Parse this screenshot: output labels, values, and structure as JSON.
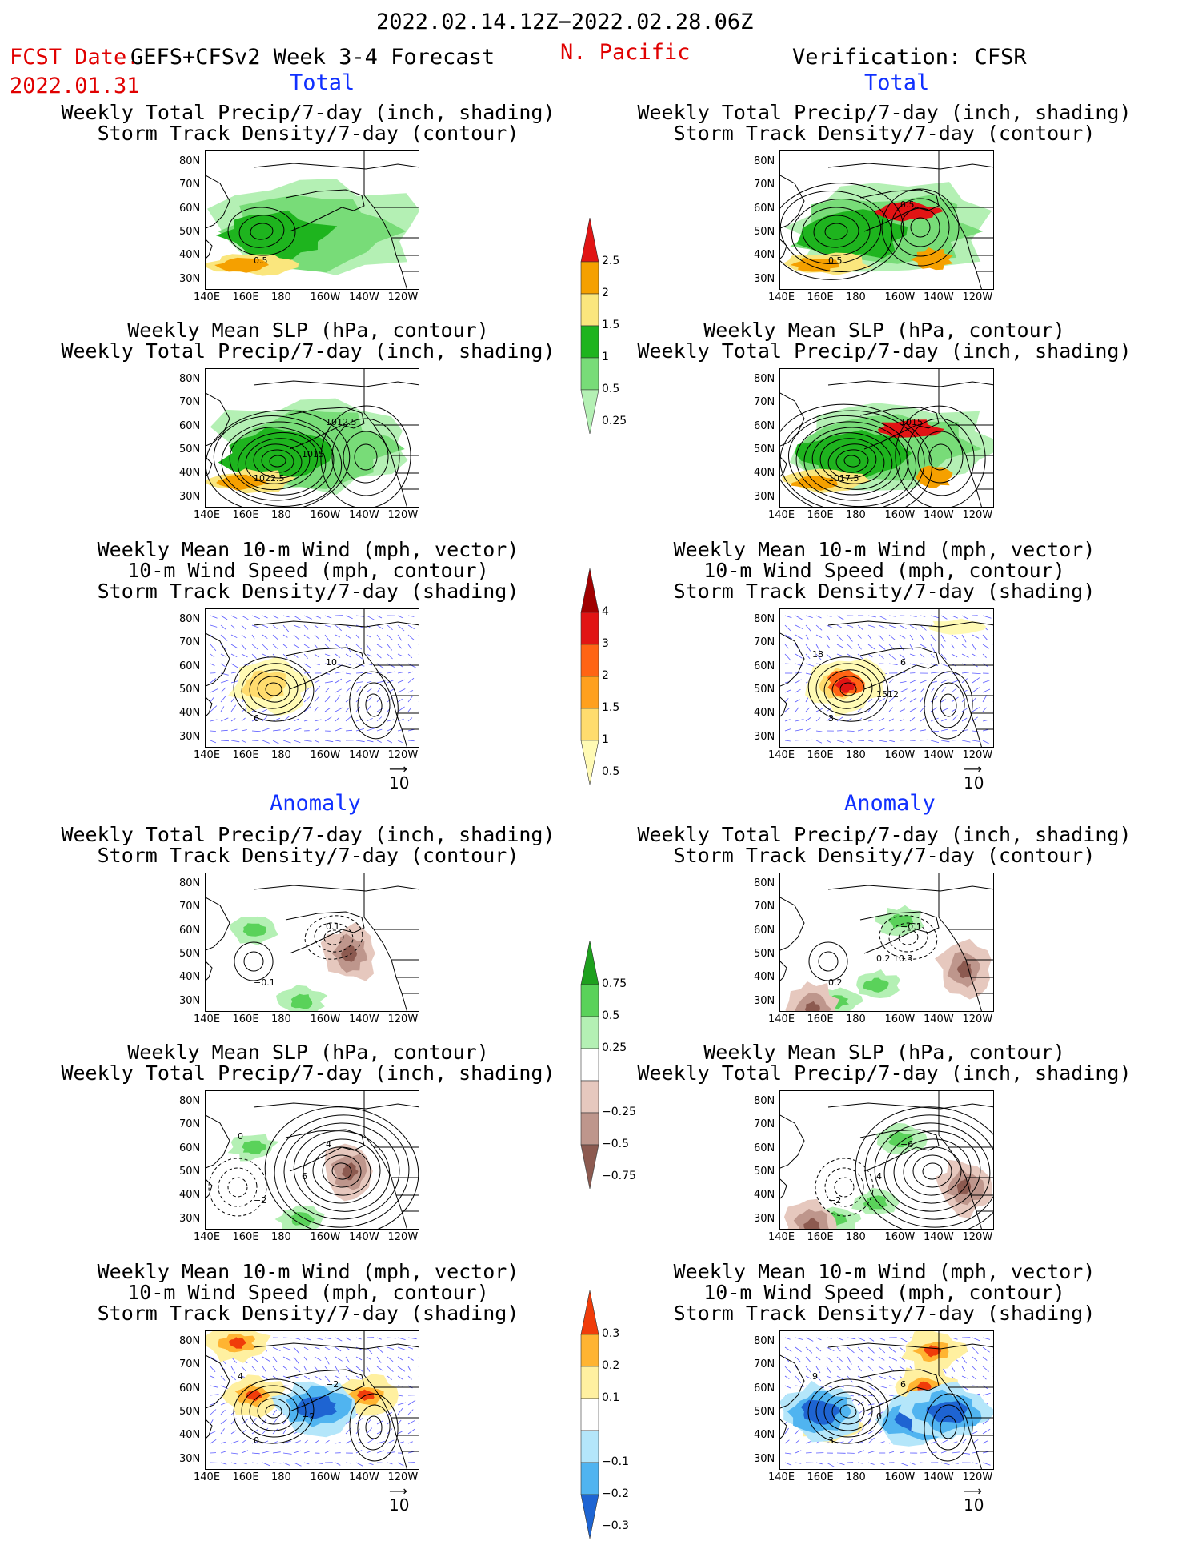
{
  "header": {
    "date_range": "2022.02.14.12Z−2022.02.28.06Z",
    "fcst_label": "FCST Date:",
    "forecast_name": "GEFS+CFSv2 Week 3-4 Forecast",
    "region": "N. Pacific",
    "fcst_date": "2022.01.31",
    "verification": "Verification: CFSR"
  },
  "sections": {
    "total": "Total",
    "anomaly": "Anomaly"
  },
  "titles": {
    "precip_storm": [
      "Weekly Total Precip/7-day (inch, shading)",
      "Storm Track Density/7-day (contour)"
    ],
    "slp_precip": [
      "Weekly Mean SLP (hPa, contour)",
      "Weekly Total Precip/7-day (inch, shading)"
    ],
    "wind_storm": [
      "Weekly Mean 10-m Wind (mph, vector)",
      "10-m Wind Speed (mph, contour)",
      "Storm Track Density/7-day (shading)"
    ]
  },
  "axes": {
    "lat_labels": [
      "80N",
      "70N",
      "60N",
      "50N",
      "40N",
      "30N"
    ],
    "lon_labels": [
      "140E",
      "160E",
      "180",
      "160W",
      "140W",
      "120W"
    ]
  },
  "vector_ref": "10",
  "colorbars": {
    "precip_total": [
      "2.5",
      "2",
      "1.5",
      "1",
      "0.5",
      "0.25"
    ],
    "storm_total": [
      "4",
      "3",
      "2",
      "1.5",
      "1",
      "0.5"
    ],
    "precip_anom": [
      "0.75",
      "0.5",
      "0.25",
      "−0.25",
      "−0.5",
      "−0.75"
    ],
    "storm_anom": [
      "0.3",
      "0.2",
      "0.1",
      "−0.1",
      "−0.2",
      "−0.3"
    ]
  },
  "contour_labels": {
    "l1": [
      "0.5"
    ],
    "r1": [
      "0.5",
      "0.5"
    ],
    "l2": [
      "1022.5",
      "1012.5",
      "1015"
    ],
    "r2": [
      "1017.5",
      "1015"
    ],
    "l3": [
      "6",
      "10"
    ],
    "r3": [
      "3",
      "6",
      "1512",
      "18"
    ],
    "l4": [
      "−0.1",
      "0.1"
    ],
    "r4": [
      "0.2",
      "−0.1",
      "0.2 10.3"
    ],
    "l5": [
      "−2",
      "4",
      "6",
      "0"
    ],
    "r5": [
      "−2",
      "−6",
      "4"
    ],
    "l6": [
      "0",
      "−2",
      "−2",
      "4"
    ],
    "r6": [
      "3",
      "6",
      "0",
      "9"
    ]
  },
  "colors": {
    "precip": [
      "#b4f0b4",
      "#78dc78",
      "#1eb41e",
      "#fae67d",
      "#f5a000",
      "#e11414"
    ],
    "storm": [
      "#fffab4",
      "#ffdc6e",
      "#ffa01e",
      "#ff6414",
      "#e11414",
      "#a00000"
    ],
    "precip_anom_pos": [
      "#b4f0b4",
      "#5ad25a",
      "#1ea01e"
    ],
    "precip_anom_neg": [
      "#e6c8be",
      "#be968c",
      "#8c5a50"
    ],
    "storm_anom_pos": [
      "#fff0a0",
      "#ffb432",
      "#f03c0a"
    ],
    "storm_anom_neg": [
      "#b4e6fa",
      "#50b4f0",
      "#1e64d2"
    ],
    "header_red": "#e00000",
    "section_blue": "#1030ff"
  }
}
